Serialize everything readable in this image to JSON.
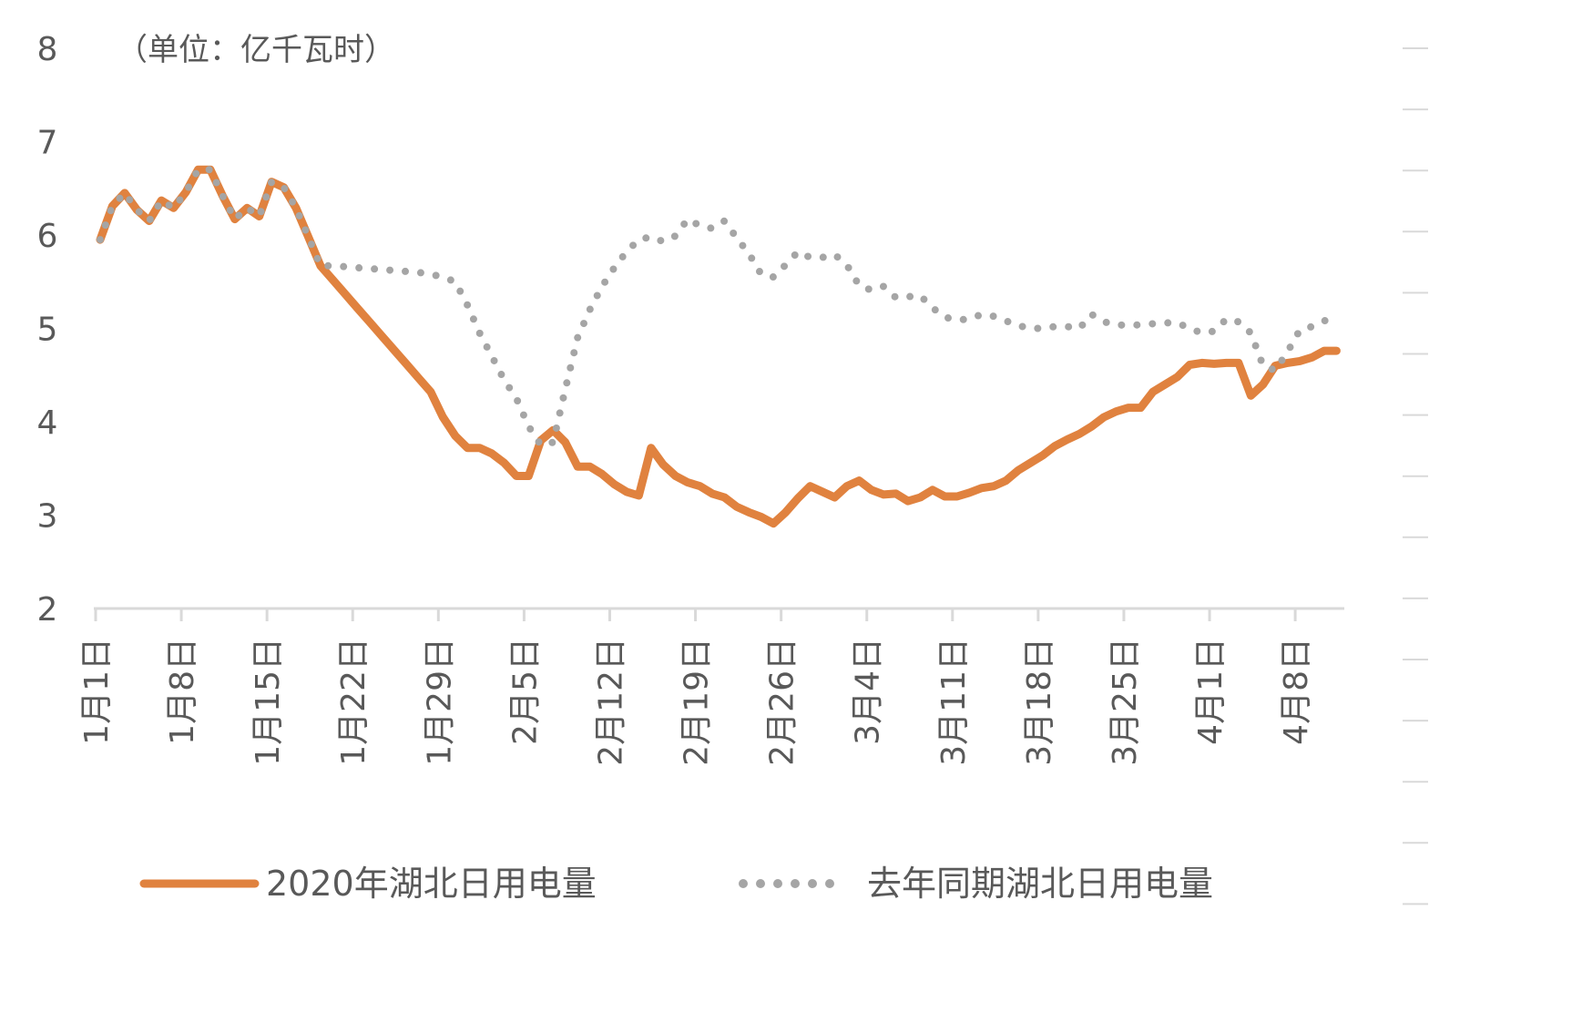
{
  "chart_data": {
    "type": "line",
    "unit_label": "（单位：亿千瓦时）",
    "ylim": [
      2,
      8
    ],
    "yticks": [
      2,
      3,
      4,
      5,
      6,
      7,
      8
    ],
    "grid": false,
    "legend_placement": "bottom",
    "x_start": "1月1日",
    "x_tick_labels": [
      "1月1日",
      "1月8日",
      "1月15日",
      "1月22日",
      "1月29日",
      "2月5日",
      "2月12日",
      "2月19日",
      "2月26日",
      "3月4日",
      "3月11日",
      "3月18日",
      "3月25日",
      "4月1日",
      "4月8日"
    ],
    "series": [
      {
        "name": "2020年湖北日用电量",
        "color": "#E0823F",
        "style": "solid",
        "values": [
          5.95,
          6.31,
          6.45,
          6.27,
          6.15,
          6.37,
          6.29,
          6.46,
          6.7,
          6.7,
          6.42,
          6.17,
          6.29,
          6.2,
          6.57,
          6.51,
          6.29,
          5.98,
          5.67,
          5.52,
          5.37,
          5.22,
          5.07,
          4.92,
          4.77,
          4.62,
          4.47,
          4.32,
          4.05,
          3.85,
          3.72,
          3.72,
          3.66,
          3.56,
          3.42,
          3.42,
          3.8,
          3.91,
          3.78,
          3.52,
          3.52,
          3.44,
          3.33,
          3.25,
          3.21,
          3.72,
          3.54,
          3.42,
          3.35,
          3.31,
          3.23,
          3.19,
          3.09,
          3.03,
          2.98,
          2.91,
          3.03,
          3.18,
          3.31,
          3.25,
          3.19,
          3.31,
          3.37,
          3.27,
          3.22,
          3.23,
          3.15,
          3.19,
          3.27,
          3.2,
          3.2,
          3.24,
          3.29,
          3.31,
          3.37,
          3.48,
          3.56,
          3.64,
          3.74,
          3.81,
          3.87,
          3.95,
          4.05,
          4.11,
          4.15,
          4.15,
          4.32,
          4.4,
          4.48,
          4.61,
          4.63,
          4.62,
          4.63,
          4.63,
          4.28,
          4.4,
          4.6,
          4.63,
          4.65,
          4.69,
          4.76,
          4.76
        ]
      },
      {
        "name": "去年同期湖北日用电量",
        "color": "#A5A5A5",
        "style": "dotted",
        "values": [
          5.95,
          6.31,
          6.45,
          6.27,
          6.15,
          6.37,
          6.29,
          6.46,
          6.7,
          6.7,
          6.42,
          6.17,
          6.29,
          6.2,
          6.57,
          6.51,
          6.29,
          5.98,
          5.67,
          5.67,
          5.66,
          5.65,
          5.64,
          5.63,
          5.62,
          5.61,
          5.6,
          5.58,
          5.55,
          5.5,
          5.25,
          4.95,
          4.7,
          4.45,
          4.25,
          3.95,
          3.75,
          3.78,
          4.35,
          4.9,
          5.2,
          5.45,
          5.65,
          5.82,
          5.95,
          5.98,
          5.93,
          5.99,
          6.17,
          6.1,
          6.07,
          6.15,
          5.97,
          5.8,
          5.58,
          5.55,
          5.68,
          5.82,
          5.76,
          5.76,
          5.79,
          5.68,
          5.46,
          5.41,
          5.45,
          5.33,
          5.34,
          5.35,
          5.22,
          5.12,
          5.09,
          5.1,
          5.15,
          5.13,
          5.08,
          5.03,
          5.0,
          5.0,
          5.02,
          5.02,
          5.0,
          5.15,
          5.07,
          5.04,
          5.03,
          5.04,
          5.05,
          5.06,
          5.06,
          5.0,
          4.95,
          4.97,
          5.1,
          5.07,
          4.95,
          4.6,
          4.55,
          4.75,
          4.98,
          5.02,
          5.08,
          5.13
        ]
      }
    ]
  }
}
